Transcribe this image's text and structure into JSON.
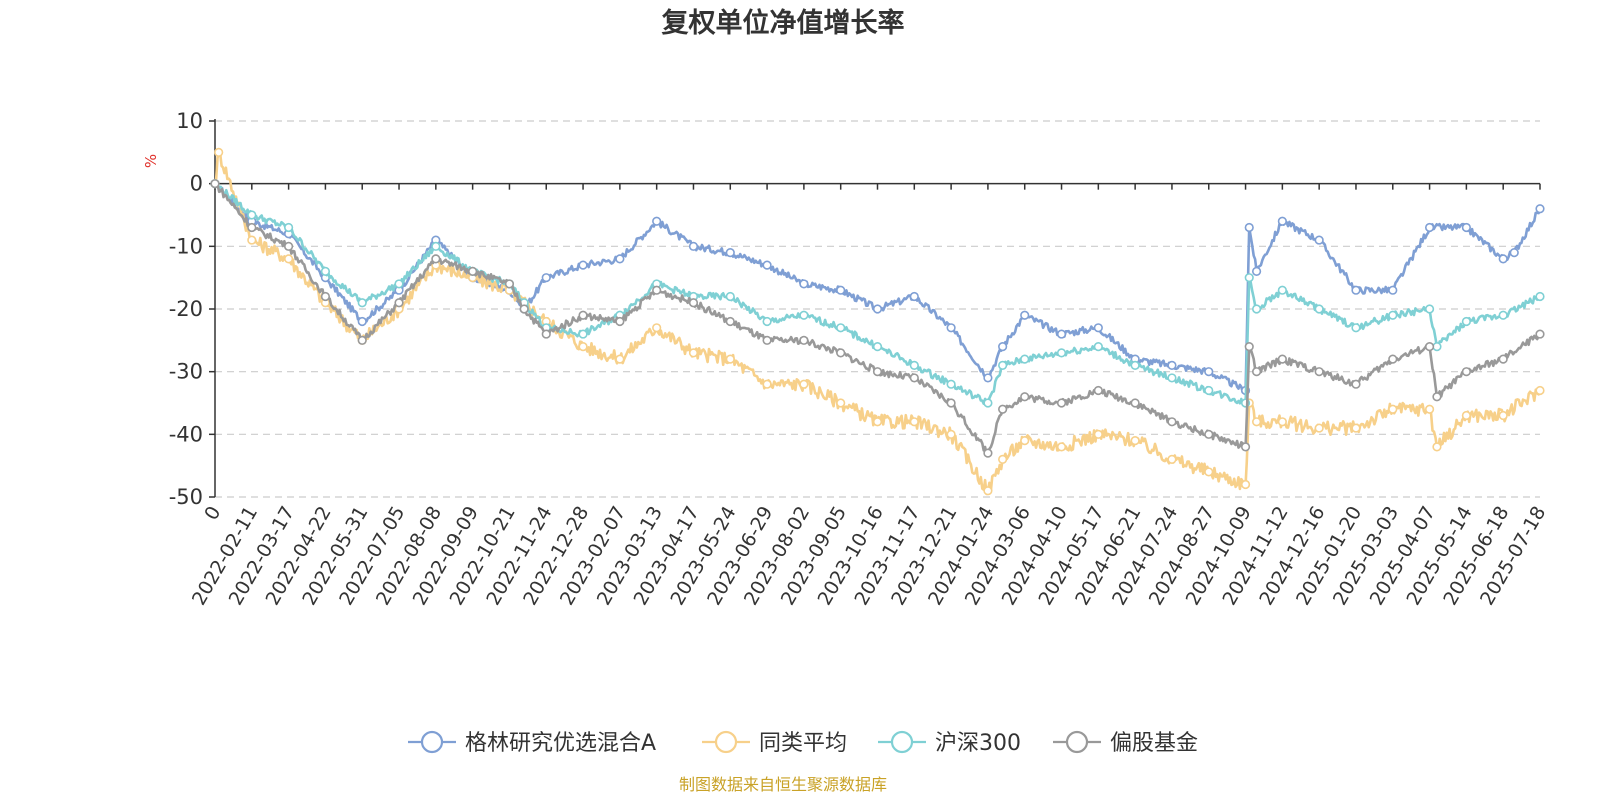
{
  "chart_data": {
    "type": "line",
    "title": "复权单位净值增长率",
    "ylabel": "%",
    "ylim": [
      -50,
      10
    ],
    "y_ticks": [
      10,
      0,
      -10,
      -20,
      -30,
      -40,
      -50
    ],
    "grid": true,
    "legend_position": "bottom",
    "source_note": "制图数据来自恒生聚源数据库",
    "x_labels": [
      "0",
      "2022-02-11",
      "2022-03-17",
      "2022-04-22",
      "2022-05-31",
      "2022-07-05",
      "2022-08-08",
      "2022-09-09",
      "2022-10-21",
      "2022-11-24",
      "2022-12-28",
      "2023-02-07",
      "2023-03-13",
      "2023-04-17",
      "2023-05-24",
      "2023-06-29",
      "2023-08-02",
      "2023-09-05",
      "2023-10-16",
      "2023-11-17",
      "2023-12-21",
      "2024-01-24",
      "2024-03-06",
      "2024-04-10",
      "2024-05-17",
      "2024-06-21",
      "2024-07-24",
      "2024-08-27",
      "2024-10-09",
      "2024-11-12",
      "2024-12-16",
      "2025-01-20",
      "2025-03-03",
      "2025-04-07",
      "2025-05-14",
      "2025-06-18",
      "2025-07-18"
    ],
    "series": [
      {
        "name": "格林研究优选混合A",
        "color": "#7f9fd4",
        "x": [
          0,
          1,
          2,
          3,
          4,
          5,
          6,
          7,
          8,
          8.4,
          9,
          10,
          11,
          12,
          13,
          14,
          15,
          16,
          17,
          18,
          19,
          20,
          21,
          21.4,
          22,
          23,
          24,
          25,
          26,
          27,
          28,
          28.1,
          28.3,
          29,
          30,
          31,
          32,
          33,
          34,
          35,
          35.3,
          36
        ],
        "values": [
          0,
          -6,
          -8,
          -15,
          -22,
          -17,
          -9,
          -15,
          -17,
          -20,
          -15,
          -13,
          -12,
          -6,
          -10,
          -11,
          -13,
          -16,
          -17,
          -20,
          -18,
          -23,
          -31,
          -26,
          -21,
          -24,
          -23,
          -28,
          -29,
          -30,
          -33,
          -7,
          -14,
          -6,
          -9,
          -17,
          -17,
          -7,
          -7,
          -12,
          -11,
          -4
        ]
      },
      {
        "name": "同类平均",
        "color": "#f7d08a",
        "x": [
          0,
          0.1,
          1,
          2,
          3,
          4,
          5,
          6,
          7,
          8,
          9,
          10,
          11,
          12,
          13,
          14,
          15,
          16,
          17,
          18,
          19,
          20,
          21,
          21.4,
          22,
          23,
          24,
          25,
          26,
          27,
          28,
          28.1,
          28.3,
          29,
          30,
          31,
          32,
          33,
          33.2,
          34,
          35,
          36
        ],
        "values": [
          0,
          5,
          -9,
          -12,
          -19,
          -25,
          -20,
          -13,
          -15,
          -17,
          -22,
          -26,
          -28,
          -23,
          -27,
          -28,
          -32,
          -32,
          -35,
          -38,
          -38,
          -40,
          -49,
          -44,
          -41,
          -42,
          -40,
          -41,
          -44,
          -46,
          -48,
          -35,
          -38,
          -38,
          -39,
          -39,
          -36,
          -36,
          -42,
          -37,
          -37,
          -33
        ]
      },
      {
        "name": "沪深300",
        "color": "#7fd0d4",
        "x": [
          0,
          1,
          2,
          3,
          4,
          5,
          6,
          7,
          8,
          8.4,
          9,
          10,
          11,
          12,
          13,
          14,
          15,
          16,
          17,
          18,
          19,
          20,
          21,
          21.4,
          22,
          23,
          24,
          25,
          26,
          27,
          28,
          28.1,
          28.3,
          29,
          30,
          31,
          32,
          33,
          33.2,
          34,
          35,
          36
        ],
        "values": [
          0,
          -5,
          -7,
          -14,
          -19,
          -16,
          -10,
          -14,
          -16,
          -19,
          -23,
          -24,
          -21,
          -16,
          -18,
          -18,
          -22,
          -21,
          -23,
          -26,
          -29,
          -32,
          -35,
          -29,
          -28,
          -27,
          -26,
          -29,
          -31,
          -33,
          -35,
          -15,
          -20,
          -17,
          -20,
          -23,
          -21,
          -20,
          -26,
          -22,
          -21,
          -18
        ]
      },
      {
        "name": "偏股基金",
        "color": "#999999",
        "x": [
          0,
          1,
          2,
          3,
          4,
          5,
          6,
          7,
          8,
          8.4,
          9,
          10,
          11,
          12,
          13,
          14,
          15,
          16,
          17,
          18,
          19,
          20,
          21,
          21.4,
          22,
          23,
          24,
          25,
          26,
          27,
          28,
          28.1,
          28.3,
          29,
          30,
          31,
          32,
          33,
          33.2,
          34,
          35,
          36
        ],
        "values": [
          0,
          -7,
          -10,
          -18,
          -25,
          -19,
          -12,
          -14,
          -16,
          -20,
          -24,
          -21,
          -22,
          -17,
          -19,
          -22,
          -25,
          -25,
          -27,
          -30,
          -31,
          -35,
          -43,
          -36,
          -34,
          -35,
          -33,
          -35,
          -38,
          -40,
          -42,
          -26,
          -30,
          -28,
          -30,
          -32,
          -28,
          -26,
          -34,
          -30,
          -28,
          -24
        ]
      }
    ]
  }
}
